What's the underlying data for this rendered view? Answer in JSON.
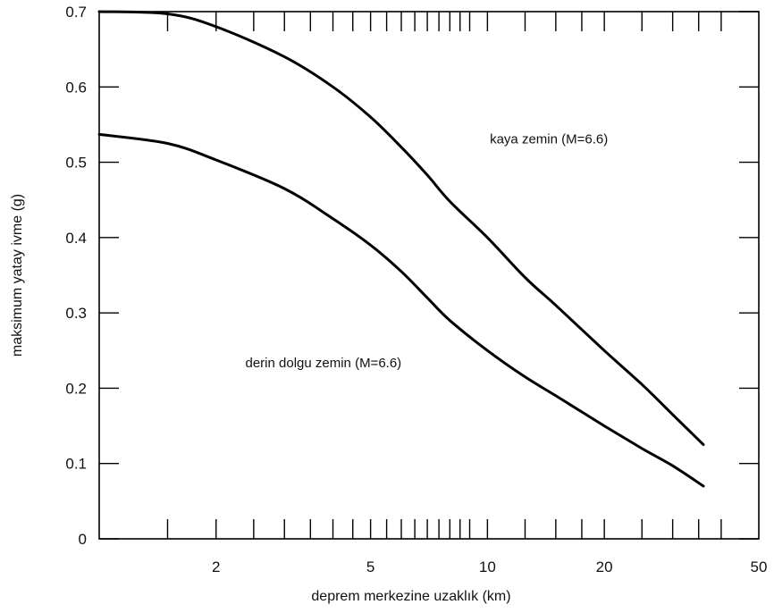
{
  "chart_data": {
    "type": "line",
    "title": "",
    "xlabel": "deprem merkezine uzaklık (km)",
    "ylabel": "maksimum yatay ivme (g)",
    "x_scale": "log",
    "xlim": [
      1.0,
      50
    ],
    "ylim": [
      0,
      0.7
    ],
    "x_ticks": [
      2,
      5,
      10,
      20,
      50
    ],
    "y_ticks": [
      0,
      0.1,
      0.2,
      0.3,
      0.4,
      0.5,
      0.6,
      0.7
    ],
    "minor_x_ticks": [
      1.5,
      2,
      2.5,
      3,
      3.5,
      4,
      4.5,
      5,
      5.5,
      6,
      6.5,
      7,
      7.5,
      8,
      8.5,
      9,
      10,
      12.5,
      15,
      17.5,
      20,
      25,
      30,
      35,
      40
    ],
    "grid": false,
    "legend": "none",
    "series": [
      {
        "label": "kaya zemin (M=6.6)",
        "color": "#000000",
        "points": [
          [
            1.0,
            0.7
          ],
          [
            1.5,
            0.697
          ],
          [
            2,
            0.68
          ],
          [
            3,
            0.64
          ],
          [
            4,
            0.6
          ],
          [
            5,
            0.56
          ],
          [
            6,
            0.52
          ],
          [
            7,
            0.483
          ],
          [
            8,
            0.448
          ],
          [
            10,
            0.4
          ],
          [
            12.5,
            0.347
          ],
          [
            15,
            0.31
          ],
          [
            20,
            0.25
          ],
          [
            25,
            0.205
          ],
          [
            30,
            0.165
          ],
          [
            36,
            0.125
          ]
        ]
      },
      {
        "label": "derin dolgu zemin (M=6.6)",
        "color": "#000000",
        "points": [
          [
            1.0,
            0.537
          ],
          [
            1.5,
            0.525
          ],
          [
            2,
            0.503
          ],
          [
            3,
            0.465
          ],
          [
            4,
            0.425
          ],
          [
            5,
            0.39
          ],
          [
            6,
            0.355
          ],
          [
            7,
            0.32
          ],
          [
            8,
            0.29
          ],
          [
            10,
            0.25
          ],
          [
            12.5,
            0.215
          ],
          [
            15,
            0.19
          ],
          [
            20,
            0.15
          ],
          [
            25,
            0.12
          ],
          [
            30,
            0.097
          ],
          [
            36,
            0.07
          ]
        ]
      }
    ],
    "annotations": [
      {
        "text": "kaya zemin (M=6.6)",
        "x": 14.4,
        "y": 0.525
      },
      {
        "text": "derin dolgu zemin (M=6.6)",
        "x": 3.78,
        "y": 0.228
      }
    ]
  }
}
